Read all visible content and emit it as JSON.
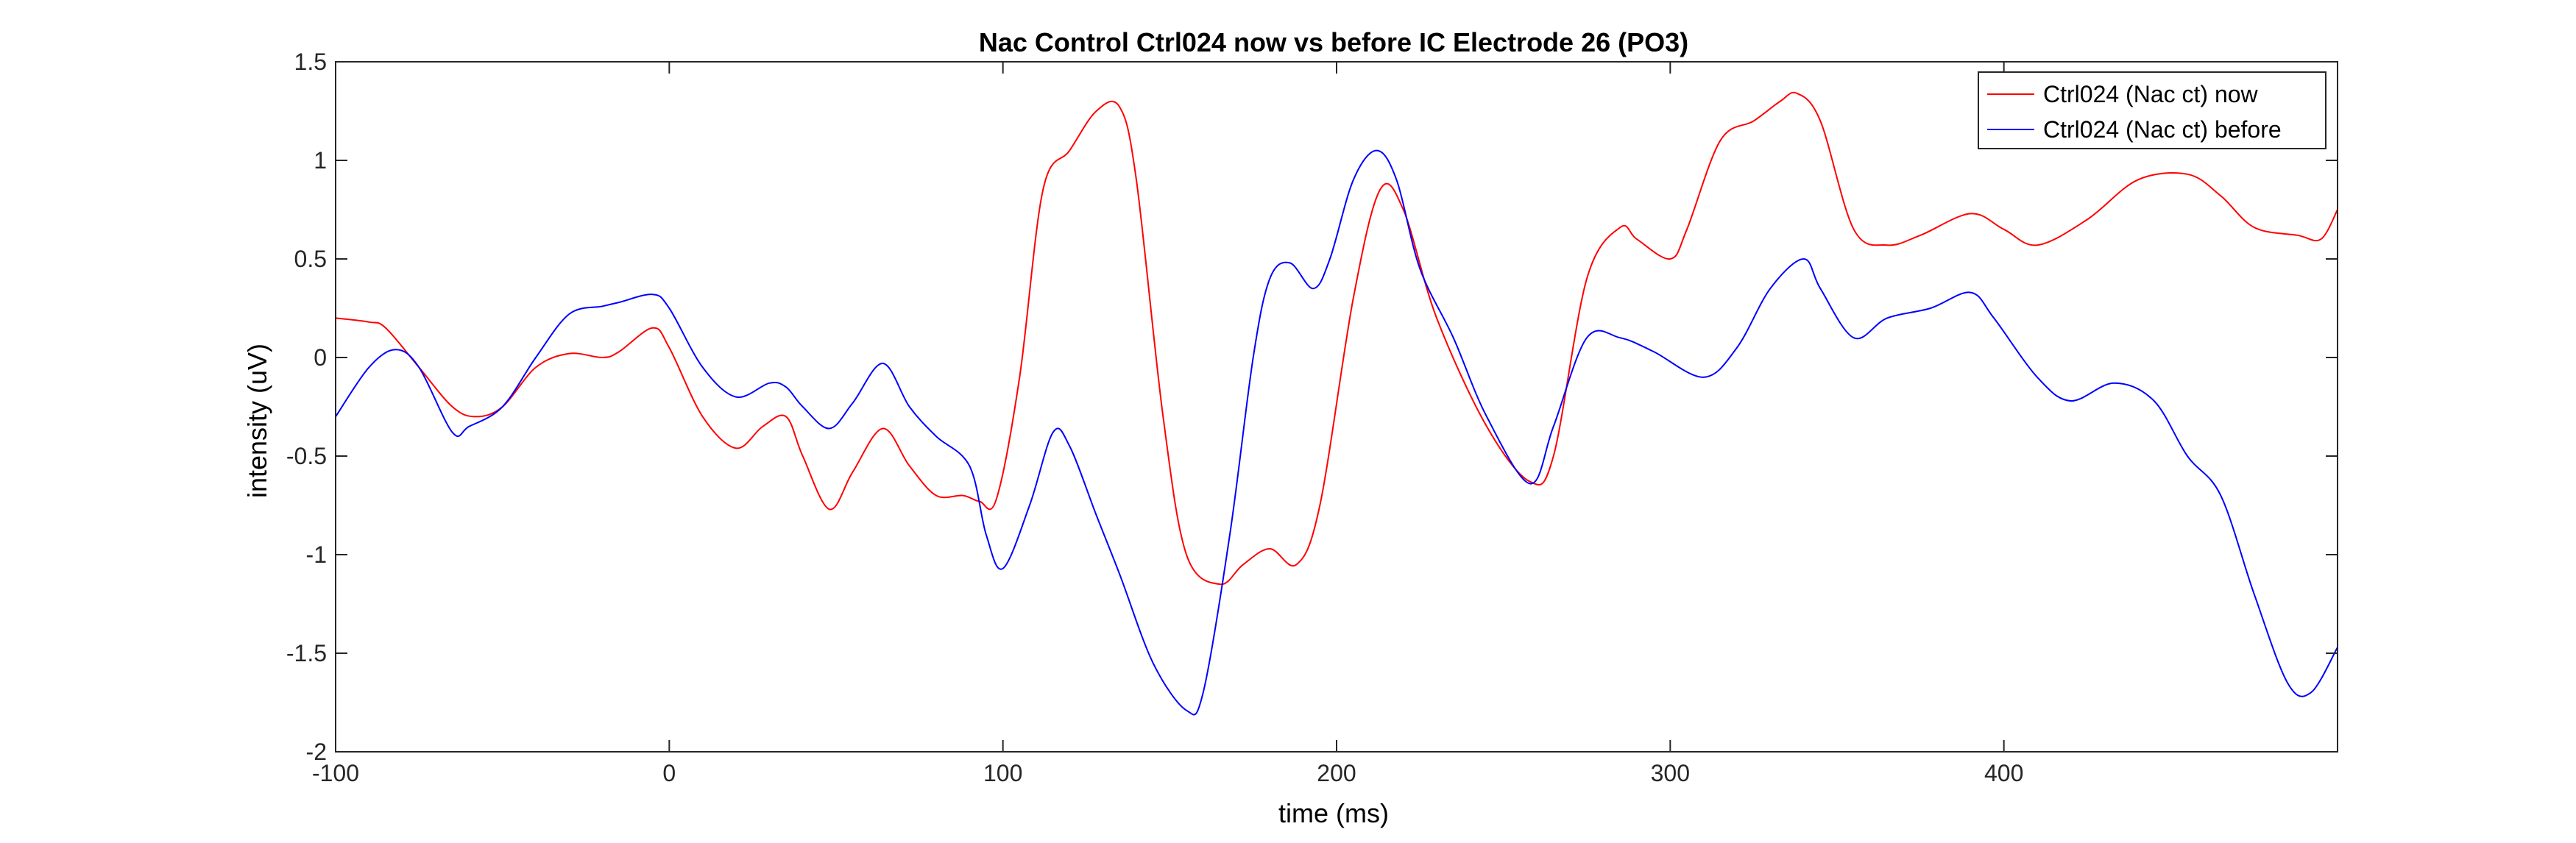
{
  "chart_data": {
    "type": "line",
    "title": "Nac Control Ctrl024 now vs before IC Electrode 26 (PO3)",
    "xlabel": "time (ms)",
    "ylabel": "intensity (uV)",
    "xlim": [
      -100,
      500
    ],
    "ylim": [
      -2,
      1.5
    ],
    "xticks": [
      -100,
      0,
      100,
      200,
      300,
      400
    ],
    "yticks": [
      -2,
      -1.5,
      -1,
      -0.5,
      0,
      0.5,
      1,
      1.5
    ],
    "xtick_labels": [
      "-100",
      "0",
      "100",
      "200",
      "300",
      "400"
    ],
    "ytick_labels": [
      "-2",
      "-1.5",
      "-1",
      "-0.5",
      "0",
      "0.5",
      "1",
      "1.5"
    ],
    "legend_position": "top-right",
    "grid": false,
    "series": [
      {
        "name": "Ctrl024 (Nac ct) now",
        "color": "#ff0000",
        "x": [
          -100,
          -90,
          -85,
          -75,
          -65,
          -58,
          -50,
          -40,
          -30,
          -20,
          -15,
          -5,
          0,
          10,
          20,
          28,
          35,
          40,
          48,
          55,
          64,
          72,
          80,
          88,
          93,
          98,
          105,
          112,
          120,
          128,
          135,
          140,
          148,
          155,
          165,
          172,
          180,
          188,
          195,
          205,
          213,
          220,
          230,
          245,
          258,
          265,
          275,
          285,
          290,
          300,
          305,
          315,
          325,
          333,
          338,
          345,
          355,
          365,
          375,
          390,
          400,
          410,
          425,
          440,
          455,
          465,
          475,
          488,
          495,
          500
        ],
        "y": [
          0.2,
          0.18,
          0.15,
          -0.05,
          -0.25,
          -0.3,
          -0.25,
          -0.05,
          0.02,
          0.0,
          0.03,
          0.15,
          0.05,
          -0.3,
          -0.46,
          -0.35,
          -0.3,
          -0.5,
          -0.77,
          -0.58,
          -0.36,
          -0.55,
          -0.7,
          -0.7,
          -0.73,
          -0.72,
          -0.1,
          0.85,
          1.05,
          1.25,
          1.27,
          0.9,
          -0.3,
          -1.0,
          -1.15,
          -1.05,
          -0.97,
          -1.05,
          -0.75,
          0.3,
          0.85,
          0.75,
          0.2,
          -0.35,
          -0.63,
          -0.5,
          0.4,
          0.66,
          0.6,
          0.5,
          0.65,
          1.1,
          1.2,
          1.3,
          1.34,
          1.2,
          0.65,
          0.57,
          0.62,
          0.73,
          0.65,
          0.57,
          0.7,
          0.9,
          0.93,
          0.82,
          0.66,
          0.62,
          0.6,
          0.75
        ]
      },
      {
        "name": "Ctrl024 (Nac ct) before",
        "color": "#0000ff",
        "x": [
          -100,
          -90,
          -82,
          -75,
          -65,
          -60,
          -50,
          -40,
          -30,
          -20,
          -15,
          -5,
          0,
          10,
          20,
          30,
          35,
          40,
          48,
          55,
          64,
          72,
          80,
          90,
          95,
          100,
          108,
          115,
          120,
          128,
          135,
          145,
          155,
          160,
          168,
          175,
          180,
          186,
          193,
          198,
          205,
          212,
          218,
          225,
          235,
          245,
          258,
          265,
          275,
          285,
          295,
          310,
          320,
          330,
          340,
          345,
          355,
          365,
          378,
          390,
          397,
          410,
          420,
          433,
          445,
          455,
          465,
          475,
          485,
          492,
          500
        ],
        "y": [
          -0.3,
          -0.05,
          0.04,
          -0.05,
          -0.38,
          -0.35,
          -0.25,
          0.0,
          0.22,
          0.26,
          0.28,
          0.32,
          0.25,
          -0.05,
          -0.2,
          -0.13,
          -0.15,
          -0.25,
          -0.36,
          -0.23,
          -0.03,
          -0.25,
          -0.4,
          -0.55,
          -0.9,
          -1.07,
          -0.75,
          -0.38,
          -0.45,
          -0.8,
          -1.1,
          -1.55,
          -1.79,
          -1.7,
          -0.9,
          0.0,
          0.4,
          0.48,
          0.35,
          0.5,
          0.9,
          1.05,
          0.9,
          0.45,
          0.1,
          -0.3,
          -0.64,
          -0.35,
          0.1,
          0.1,
          0.03,
          -0.1,
          0.05,
          0.35,
          0.5,
          0.35,
          0.1,
          0.2,
          0.25,
          0.33,
          0.2,
          -0.1,
          -0.22,
          -0.13,
          -0.22,
          -0.5,
          -0.7,
          -1.2,
          -1.65,
          -1.7,
          -1.47
        ]
      }
    ]
  }
}
